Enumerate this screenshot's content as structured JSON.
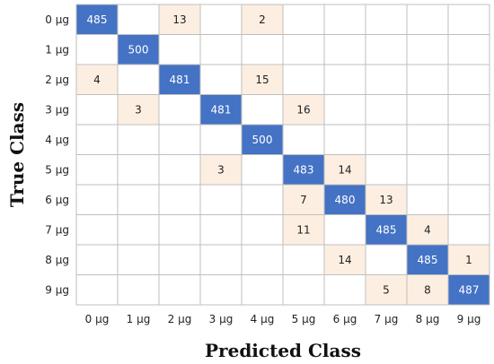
{
  "chart_data": {
    "type": "heatmap",
    "title": "",
    "xlabel": "Predicted Class",
    "ylabel": "True Class",
    "x_categories": [
      "0 µg",
      "1 µg",
      "2 µg",
      "3 µg",
      "4 µg",
      "5 µg",
      "6 µg",
      "7 µg",
      "8 µg",
      "9 µg"
    ],
    "y_categories": [
      "0 µg",
      "1 µg",
      "2 µg",
      "3 µg",
      "4 µg",
      "5 µg",
      "6 µg",
      "7 µg",
      "8 µg",
      "9 µg"
    ],
    "matrix": [
      [
        485,
        null,
        13,
        null,
        2,
        null,
        null,
        null,
        null,
        null
      ],
      [
        null,
        500,
        null,
        null,
        null,
        null,
        null,
        null,
        null,
        null
      ],
      [
        4,
        null,
        481,
        null,
        15,
        null,
        null,
        null,
        null,
        null
      ],
      [
        null,
        3,
        null,
        481,
        null,
        16,
        null,
        null,
        null,
        null
      ],
      [
        null,
        null,
        null,
        null,
        500,
        null,
        null,
        null,
        null,
        null
      ],
      [
        null,
        null,
        null,
        3,
        null,
        483,
        14,
        null,
        null,
        null
      ],
      [
        null,
        null,
        null,
        null,
        null,
        7,
        480,
        13,
        null,
        null
      ],
      [
        null,
        null,
        null,
        null,
        null,
        11,
        null,
        485,
        4,
        null
      ],
      [
        null,
        null,
        null,
        null,
        null,
        null,
        14,
        null,
        485,
        1
      ],
      [
        null,
        null,
        null,
        null,
        null,
        null,
        null,
        5,
        8,
        487
      ]
    ],
    "colors": {
      "diagonal": "#4472c4",
      "off_diagonal": "#fcefe2",
      "empty": "#ffffff",
      "grid": "#bfbfbf",
      "diagonal_text": "#ffffff",
      "off_diagonal_text": "#222222"
    },
    "grid": true
  }
}
